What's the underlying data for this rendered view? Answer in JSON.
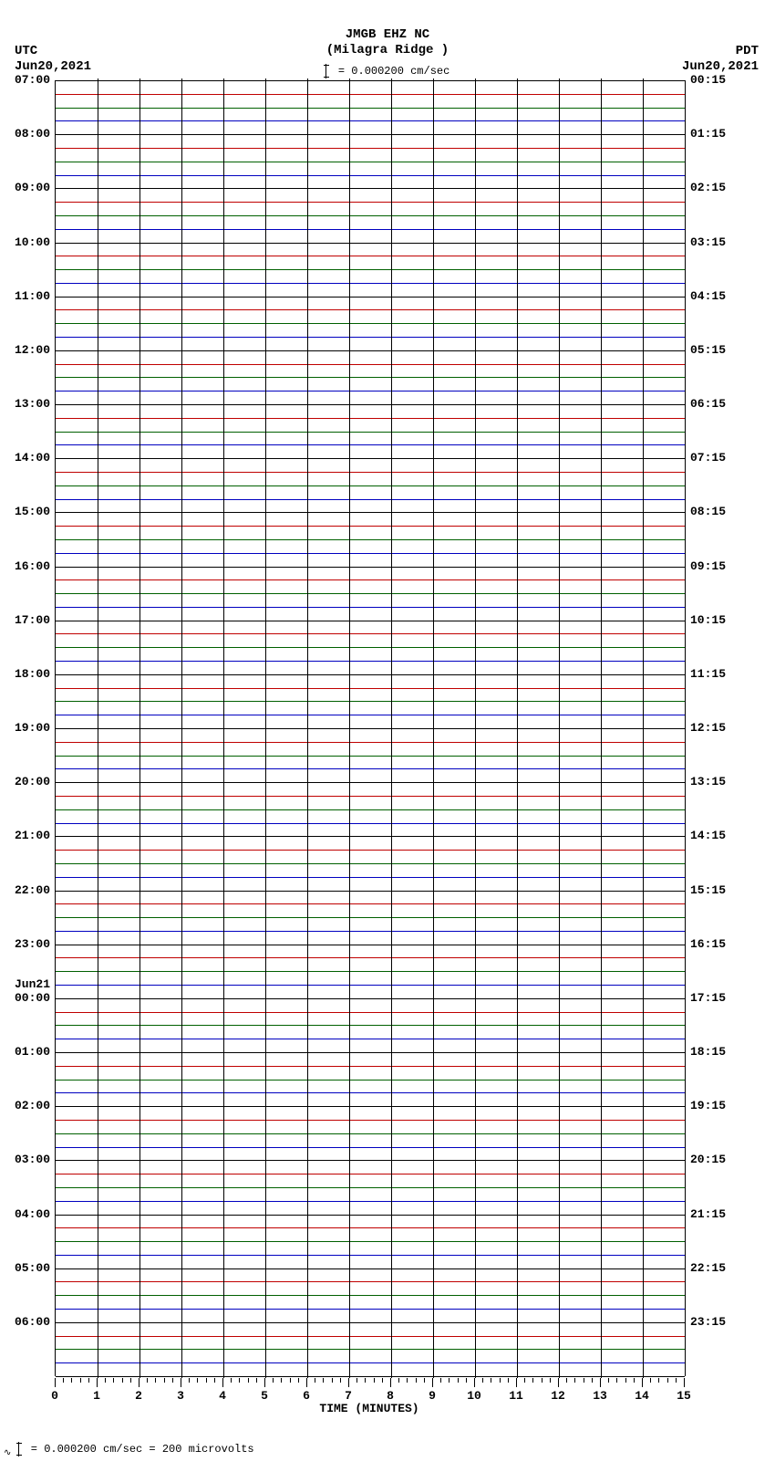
{
  "title_line1": "JMGB EHZ NC",
  "title_line2": "(Milagra Ridge )",
  "scale_label": "= 0.000200 cm/sec",
  "left_corner": {
    "tz": "UTC",
    "date": "Jun20,2021"
  },
  "right_corner": {
    "tz": "PDT",
    "date": "Jun20,2021"
  },
  "footer_text": "= 0.000200 cm/sec =    200 microvolts",
  "x_axis": {
    "title": "TIME (MINUTES)",
    "min": 0,
    "max": 15,
    "majors": [
      0,
      1,
      2,
      3,
      4,
      5,
      6,
      7,
      8,
      9,
      10,
      11,
      12,
      13,
      14,
      15
    ],
    "minor_per_major": 4
  },
  "plot": {
    "trace_count": 96,
    "trace_colors": [
      "#000000",
      "#c00000",
      "#006000",
      "#0000c0"
    ],
    "grid_vertical_count": 15,
    "left_labels": [
      {
        "row": 0,
        "text": "07:00"
      },
      {
        "row": 4,
        "text": "08:00"
      },
      {
        "row": 8,
        "text": "09:00"
      },
      {
        "row": 12,
        "text": "10:00"
      },
      {
        "row": 16,
        "text": "11:00"
      },
      {
        "row": 20,
        "text": "12:00"
      },
      {
        "row": 24,
        "text": "13:00"
      },
      {
        "row": 28,
        "text": "14:00"
      },
      {
        "row": 32,
        "text": "15:00"
      },
      {
        "row": 36,
        "text": "16:00"
      },
      {
        "row": 40,
        "text": "17:00"
      },
      {
        "row": 44,
        "text": "18:00"
      },
      {
        "row": 48,
        "text": "19:00"
      },
      {
        "row": 52,
        "text": "20:00"
      },
      {
        "row": 56,
        "text": "21:00"
      },
      {
        "row": 60,
        "text": "22:00"
      },
      {
        "row": 64,
        "text": "23:00"
      },
      {
        "row": 67,
        "text": "Jun21"
      },
      {
        "row": 68,
        "text": "00:00"
      },
      {
        "row": 72,
        "text": "01:00"
      },
      {
        "row": 76,
        "text": "02:00"
      },
      {
        "row": 80,
        "text": "03:00"
      },
      {
        "row": 84,
        "text": "04:00"
      },
      {
        "row": 88,
        "text": "05:00"
      },
      {
        "row": 92,
        "text": "06:00"
      }
    ],
    "right_labels": [
      {
        "row": 0,
        "text": "00:15"
      },
      {
        "row": 4,
        "text": "01:15"
      },
      {
        "row": 8,
        "text": "02:15"
      },
      {
        "row": 12,
        "text": "03:15"
      },
      {
        "row": 16,
        "text": "04:15"
      },
      {
        "row": 20,
        "text": "05:15"
      },
      {
        "row": 24,
        "text": "06:15"
      },
      {
        "row": 28,
        "text": "07:15"
      },
      {
        "row": 32,
        "text": "08:15"
      },
      {
        "row": 36,
        "text": "09:15"
      },
      {
        "row": 40,
        "text": "10:15"
      },
      {
        "row": 44,
        "text": "11:15"
      },
      {
        "row": 48,
        "text": "12:15"
      },
      {
        "row": 52,
        "text": "13:15"
      },
      {
        "row": 56,
        "text": "14:15"
      },
      {
        "row": 60,
        "text": "15:15"
      },
      {
        "row": 64,
        "text": "16:15"
      },
      {
        "row": 68,
        "text": "17:15"
      },
      {
        "row": 72,
        "text": "18:15"
      },
      {
        "row": 76,
        "text": "19:15"
      },
      {
        "row": 80,
        "text": "20:15"
      },
      {
        "row": 84,
        "text": "21:15"
      },
      {
        "row": 88,
        "text": "22:15"
      },
      {
        "row": 92,
        "text": "23:15"
      }
    ]
  }
}
